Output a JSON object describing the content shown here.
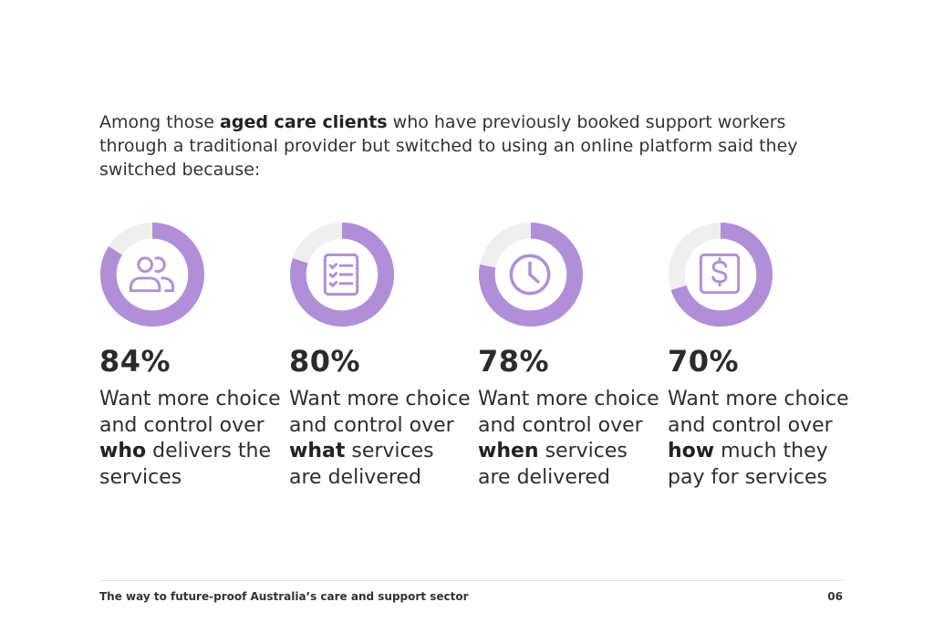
{
  "intro": {
    "part1": "Among those ",
    "bold": "aged care clients",
    "part2": " who have previously booked support workers through a traditional provider but switched to using an online platform said they switched because:"
  },
  "colors": {
    "accent": "#b18ed8",
    "track": "#efefef"
  },
  "stats": [
    {
      "percent_label": "84%",
      "value": 84,
      "icon": "users-icon",
      "text_before": "Want more choice and control over ",
      "text_bold": "who",
      "text_after": " delivers the services"
    },
    {
      "percent_label": "80%",
      "value": 80,
      "icon": "checklist-icon",
      "text_before": "Want more choice and control over ",
      "text_bold": "what",
      "text_after": " services are delivered"
    },
    {
      "percent_label": "78%",
      "value": 78,
      "icon": "clock-icon",
      "text_before": "Want more choice and control over ",
      "text_bold": "when",
      "text_after": " services are delivered"
    },
    {
      "percent_label": "70%",
      "value": 70,
      "icon": "dollar-icon",
      "text_before": "Want more choice and control over ",
      "text_bold": "how",
      "text_after": " much they pay for services"
    }
  ],
  "footer": {
    "title": "The way to future-proof Australia’s care and support sector",
    "page": "06"
  }
}
